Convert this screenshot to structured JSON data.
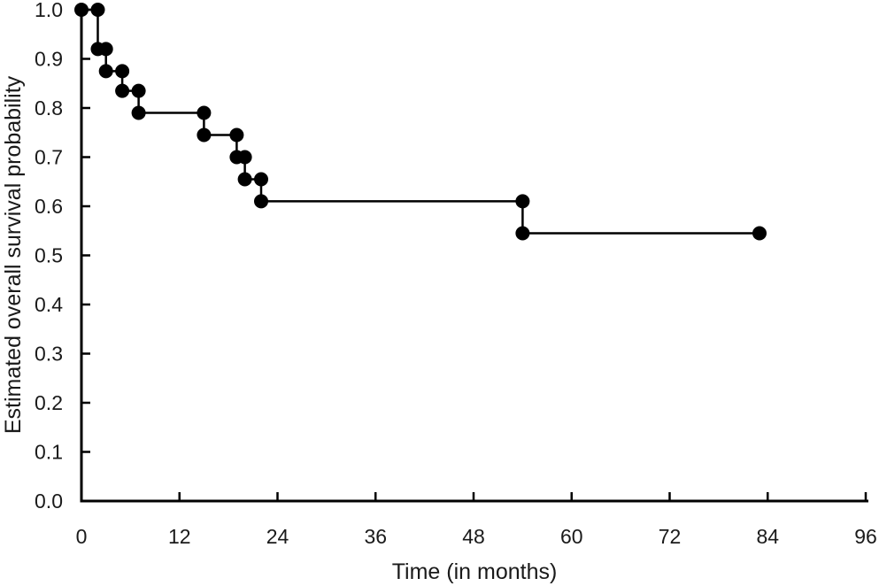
{
  "figure": {
    "kind": "kaplan-meier-survival-plot",
    "background_color": "#ffffff",
    "foreground_color": "#000000"
  },
  "chart_data": {
    "type": "line",
    "subtype": "step_function_kaplan_meier",
    "title": "",
    "xlabel": "Time (in months)",
    "ylabel": "Estimated overall survival probability",
    "xlim": [
      0,
      96
    ],
    "ylim": [
      0.0,
      1.0
    ],
    "x_tick_values": [
      0,
      12,
      24,
      36,
      48,
      60,
      72,
      84,
      96
    ],
    "x_tick_labels": [
      "0",
      "12",
      "24",
      "36",
      "48",
      "60",
      "72",
      "84",
      "96"
    ],
    "y_tick_values": [
      0.0,
      0.1,
      0.2,
      0.3,
      0.4,
      0.5,
      0.6,
      0.7,
      0.8,
      0.9,
      1.0
    ],
    "y_tick_labels": [
      "0.0",
      "0.1",
      "0.2",
      "0.3",
      "0.4",
      "0.5",
      "0.6",
      "0.7",
      "0.8",
      "0.9",
      "1.0"
    ],
    "grid": false,
    "legend": "none",
    "axis_color": "#000000",
    "line_color": "#000000",
    "marker": {
      "shape": "circle",
      "color": "#000000",
      "radius_px": 8
    },
    "series": [
      {
        "name": "Estimated overall survival",
        "points_note": "step vertices [time_months, survival_probability]; a filled dot is drawn at every vertex",
        "points": [
          [
            0,
            1.0
          ],
          [
            2,
            1.0
          ],
          [
            2,
            0.92
          ],
          [
            3,
            0.92
          ],
          [
            3,
            0.875
          ],
          [
            5,
            0.875
          ],
          [
            5,
            0.835
          ],
          [
            7,
            0.835
          ],
          [
            7,
            0.79
          ],
          [
            15,
            0.79
          ],
          [
            15,
            0.745
          ],
          [
            19,
            0.745
          ],
          [
            19,
            0.7
          ],
          [
            20,
            0.7
          ],
          [
            20,
            0.655
          ],
          [
            22,
            0.655
          ],
          [
            22,
            0.61
          ],
          [
            54,
            0.61
          ],
          [
            54,
            0.545
          ],
          [
            83,
            0.545
          ]
        ]
      }
    ]
  }
}
